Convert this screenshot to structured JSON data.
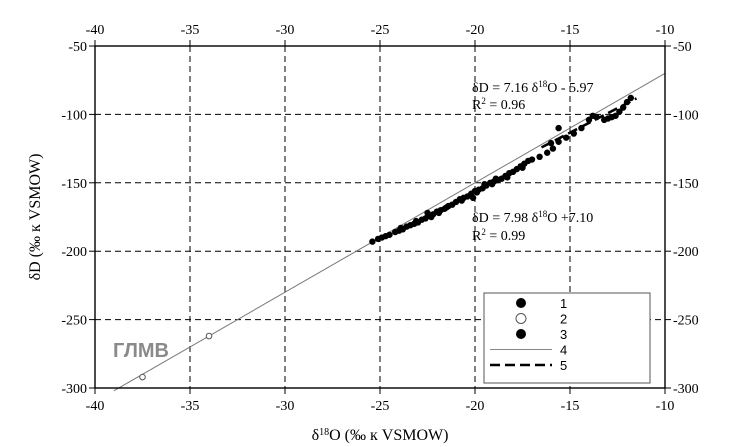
{
  "chart_data": {
    "type": "scatter",
    "xlabel": {
      "delta": "δ",
      "sup": "18",
      "rest": "O (‰  к  VSMOW)"
    },
    "ylabel": "δD (‰  к  VSMOW)",
    "xlim": [
      -40,
      -10
    ],
    "ylim": [
      -300,
      -50
    ],
    "xticks": [
      -40,
      -35,
      -30,
      -25,
      -20,
      -15,
      -10
    ],
    "yticks": [
      -300,
      -250,
      -200,
      -150,
      -100,
      -50
    ],
    "xtick_labels": [
      "-40",
      "-35",
      "-30",
      "-25",
      "-20",
      "-15",
      "-10"
    ],
    "ytick_labels": [
      "-300",
      "-250",
      "-200",
      "-150",
      "-100",
      "-50"
    ],
    "grid": true,
    "annotation_upper": {
      "eq_a": "δD = 7.16 δ",
      "eq_sup": "18",
      "eq_b": "O - 5.97",
      "r2_a": "R",
      "r2_sup": "2",
      "r2_b": " = 0.96"
    },
    "annotation_lower": {
      "eq_a": "δD = 7.98 δ",
      "eq_sup": "18",
      "eq_b": "O +7.10",
      "r2_a": "R",
      "r2_sup": "2",
      "r2_b": " = 0.99"
    },
    "gmwl_label": "ГЛМВ",
    "legend": {
      "placement": "bottom-right",
      "items": [
        {
          "label": "1",
          "kind": "filled-circle"
        },
        {
          "label": "2",
          "kind": "open-circle"
        },
        {
          "label": "3",
          "kind": "filled-circle"
        },
        {
          "label": "4",
          "kind": "thin-line"
        },
        {
          "label": "5",
          "kind": "dashed-line"
        }
      ]
    },
    "lines": [
      {
        "legend": "4",
        "style": "thin-line",
        "slope": 8.0,
        "intercept": 10.0,
        "x_range": [
          -39,
          -10
        ]
      },
      {
        "legend": "5",
        "style": "dashed-line",
        "slope": 7.16,
        "intercept": -5.97,
        "x_range": [
          -16.5,
          -11.5
        ]
      }
    ],
    "series": [
      {
        "legend": "2",
        "marker": "open-circle",
        "points": [
          [
            -37.5,
            -292
          ],
          [
            -34,
            -262
          ]
        ]
      },
      {
        "legend": "1",
        "marker": "filled-circle",
        "points": [
          [
            -25.4,
            -193
          ],
          [
            -25.1,
            -191
          ],
          [
            -24.9,
            -190
          ],
          [
            -24.7,
            -189
          ],
          [
            -24.5,
            -188
          ],
          [
            -24.2,
            -186
          ],
          [
            -24.0,
            -185
          ],
          [
            -23.8,
            -184
          ],
          [
            -23.6,
            -182
          ],
          [
            -23.4,
            -181
          ],
          [
            -23.2,
            -180
          ],
          [
            -23.0,
            -179
          ],
          [
            -22.8,
            -177
          ],
          [
            -22.6,
            -176
          ],
          [
            -22.4,
            -174
          ],
          [
            -22.2,
            -173
          ],
          [
            -22.0,
            -171
          ],
          [
            -21.8,
            -170
          ],
          [
            -21.6,
            -169
          ],
          [
            -21.4,
            -167
          ],
          [
            -21.2,
            -166
          ],
          [
            -21.0,
            -164
          ],
          [
            -20.8,
            -162
          ],
          [
            -20.6,
            -161
          ],
          [
            -20.4,
            -160
          ],
          [
            -20.2,
            -158
          ],
          [
            -20.0,
            -156
          ],
          [
            -19.8,
            -155
          ],
          [
            -19.6,
            -154
          ],
          [
            -19.4,
            -152
          ],
          [
            -19.2,
            -150
          ],
          [
            -19.0,
            -149
          ],
          [
            -18.8,
            -148
          ],
          [
            -18.6,
            -147
          ],
          [
            -18.4,
            -145
          ],
          [
            -18.2,
            -143
          ],
          [
            -18.0,
            -142
          ],
          [
            -17.8,
            -140
          ],
          [
            -17.6,
            -138
          ],
          [
            -17.4,
            -136
          ],
          [
            -17.2,
            -134
          ],
          [
            -17.0,
            -133
          ],
          [
            -23.9,
            -183
          ],
          [
            -23.1,
            -178
          ],
          [
            -22.3,
            -175
          ],
          [
            -21.5,
            -168
          ],
          [
            -20.7,
            -163
          ],
          [
            -19.9,
            -157
          ],
          [
            -19.1,
            -151
          ],
          [
            -18.3,
            -146
          ],
          [
            -17.5,
            -139
          ],
          [
            -16.6,
            -131
          ],
          [
            -16.2,
            -128
          ],
          [
            -15.9,
            -125
          ],
          [
            -15.6,
            -120
          ],
          [
            -15.6,
            -110
          ],
          [
            -16.0,
            -121
          ],
          [
            -15.2,
            -117
          ],
          [
            -14.8,
            -114
          ],
          [
            -14.4,
            -110
          ],
          [
            -14.0,
            -104
          ],
          [
            -13.8,
            -101
          ],
          [
            -13.6,
            -102
          ],
          [
            -13.2,
            -104
          ],
          [
            -13.0,
            -103
          ],
          [
            -12.8,
            -102
          ],
          [
            -12.6,
            -101
          ],
          [
            -12.4,
            -98
          ],
          [
            -12.2,
            -95
          ],
          [
            -12.0,
            -91
          ],
          [
            -11.8,
            -88
          ],
          [
            -22.5,
            -172
          ],
          [
            -21.9,
            -172
          ],
          [
            -20.1,
            -161
          ],
          [
            -19.5,
            -151
          ],
          [
            -18.9,
            -147
          ]
        ]
      }
    ]
  }
}
